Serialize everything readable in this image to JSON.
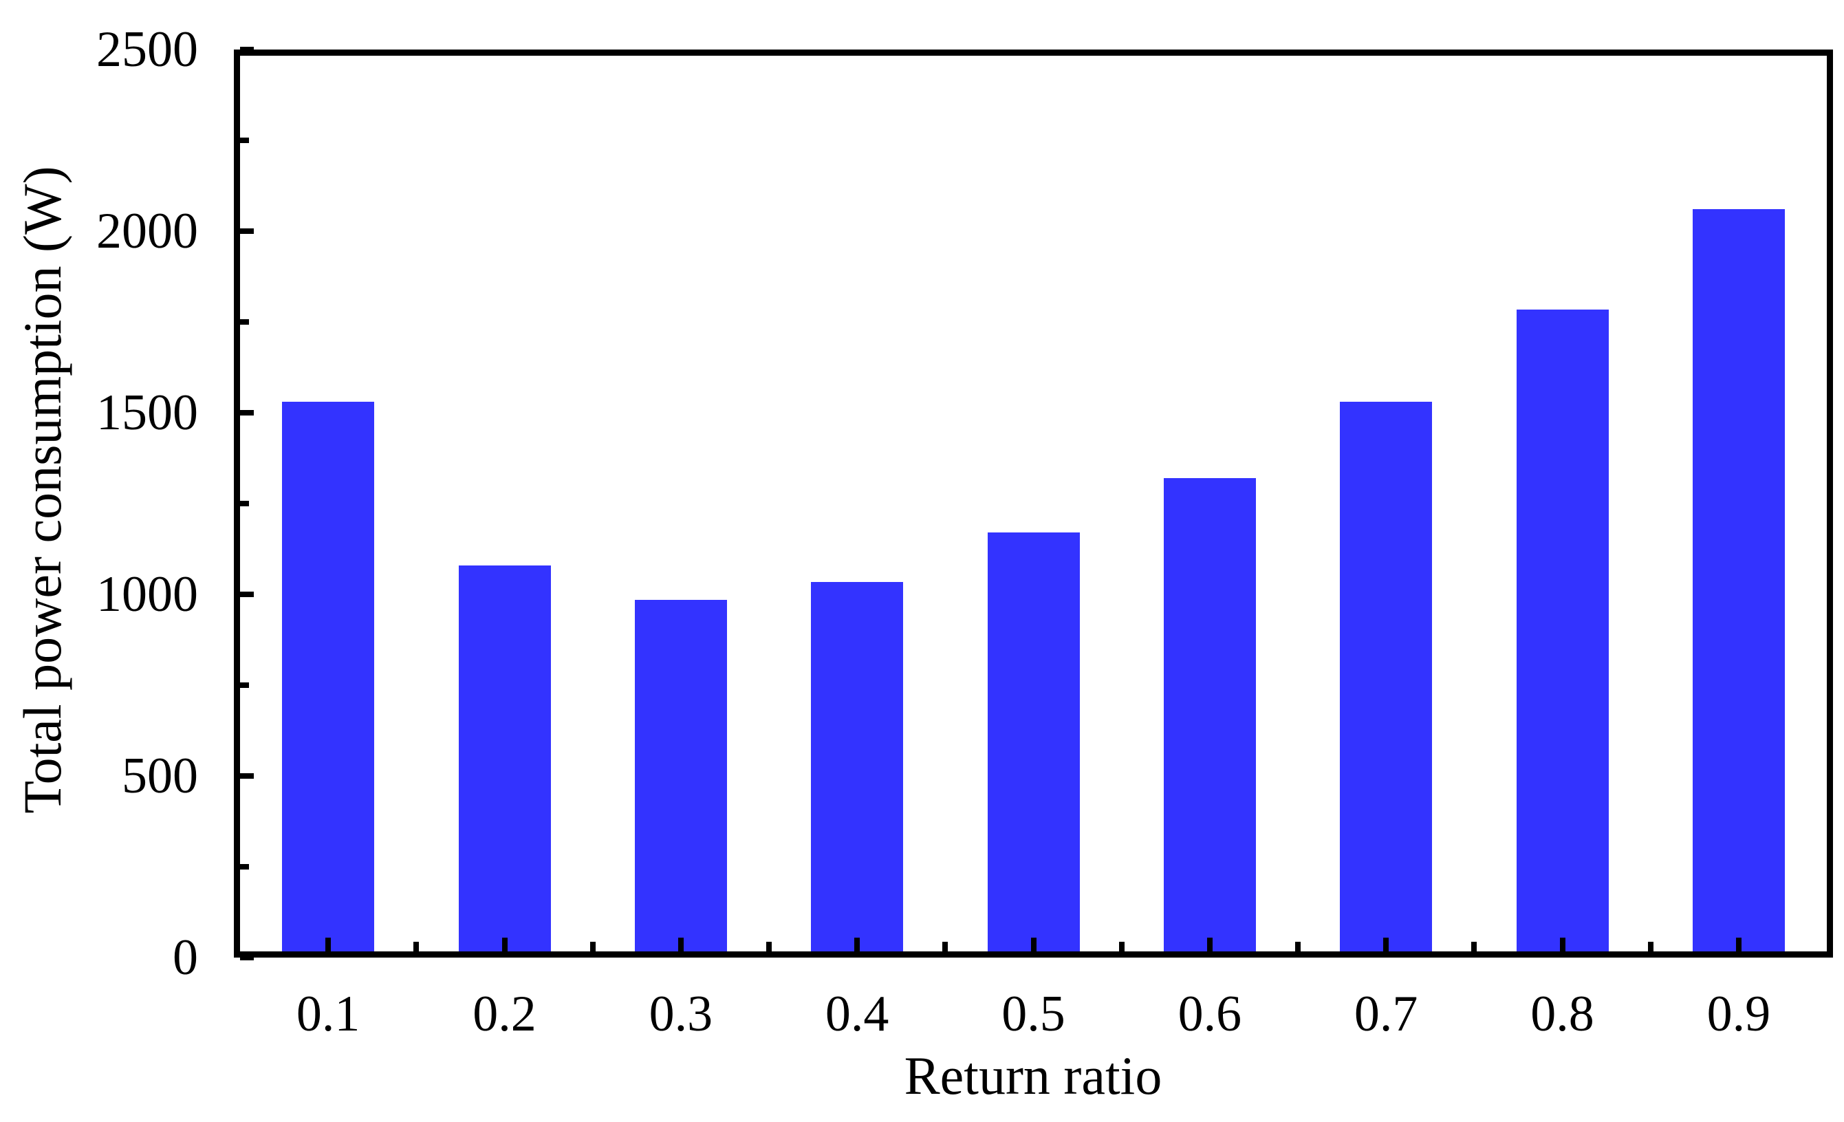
{
  "chart_data": {
    "type": "bar",
    "title": "",
    "xlabel": "Return ratio",
    "ylabel": "Total power consumption (W)",
    "categories": [
      "0.1",
      "0.2",
      "0.3",
      "0.4",
      "0.5",
      "0.6",
      "0.7",
      "0.8",
      "0.9"
    ],
    "values": [
      1530,
      1080,
      985,
      1035,
      1170,
      1320,
      1530,
      1785,
      2060
    ],
    "ylim": [
      0,
      2500
    ],
    "y_major_ticks": [
      0,
      500,
      1000,
      1500,
      2000,
      2500
    ],
    "y_major_tick_labels": [
      "0",
      "500",
      "1000",
      "1500",
      "2000",
      "2500"
    ],
    "y_minor_ticks": [
      250,
      750,
      1250,
      1750,
      2250
    ],
    "grid": false,
    "legend": null,
    "bar_color": "#3333ff",
    "axis_color": "#000000"
  }
}
